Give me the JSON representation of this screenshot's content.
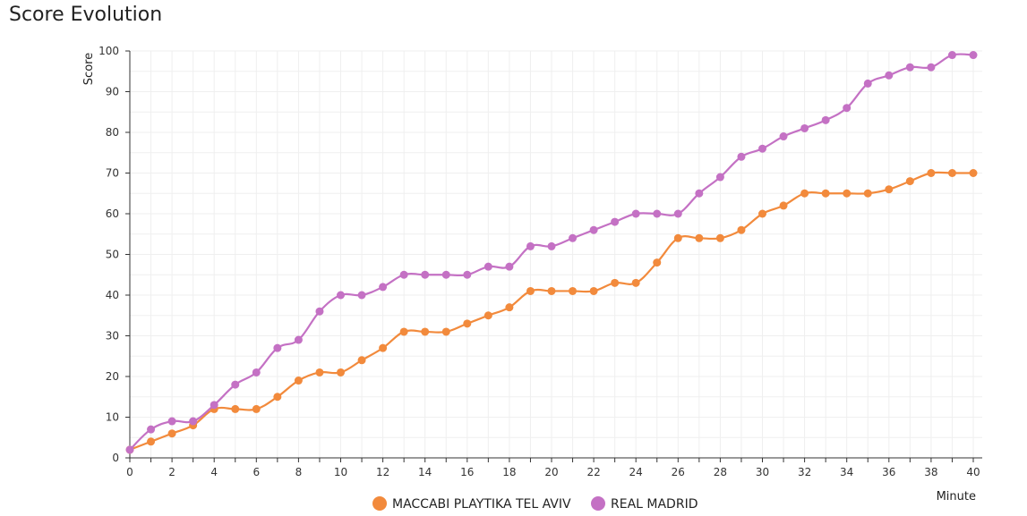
{
  "title": "Score Evolution",
  "chart_data": {
    "type": "line",
    "title": "Score Evolution",
    "xlabel": "Minute",
    "ylabel": "Score",
    "xlim": [
      0,
      40
    ],
    "ylim": [
      0,
      100
    ],
    "x_ticks": [
      0,
      2,
      4,
      6,
      8,
      10,
      12,
      14,
      16,
      18,
      20,
      22,
      24,
      26,
      28,
      30,
      32,
      34,
      36,
      38,
      40
    ],
    "y_ticks": [
      0,
      10,
      20,
      30,
      40,
      50,
      60,
      70,
      80,
      90,
      100
    ],
    "grid": true,
    "legend_position": "bottom",
    "x": [
      0,
      1,
      2,
      3,
      4,
      5,
      6,
      7,
      8,
      9,
      10,
      11,
      12,
      13,
      14,
      15,
      16,
      17,
      18,
      19,
      20,
      21,
      22,
      23,
      24,
      25,
      26,
      27,
      28,
      29,
      30,
      31,
      32,
      33,
      34,
      35,
      36,
      37,
      38,
      39,
      40
    ],
    "series": [
      {
        "name": "MACCABI PLAYTIKA TEL AVIV",
        "color": "#f28a3c",
        "values": [
          2,
          4,
          6,
          8,
          12,
          12,
          12,
          15,
          19,
          21,
          21,
          24,
          27,
          31,
          31,
          31,
          33,
          35,
          37,
          41,
          41,
          41,
          41,
          43,
          43,
          48,
          54,
          54,
          54,
          56,
          60,
          62,
          65,
          65,
          65,
          65,
          66,
          68,
          70,
          70,
          70
        ]
      },
      {
        "name": "REAL MADRID",
        "color": "#c471c4",
        "values": [
          2,
          7,
          9,
          9,
          13,
          18,
          21,
          27,
          29,
          36,
          40,
          40,
          42,
          45,
          45,
          45,
          45,
          47,
          47,
          52,
          52,
          54,
          56,
          58,
          60,
          60,
          60,
          65,
          69,
          74,
          76,
          79,
          81,
          83,
          86,
          92,
          94,
          96,
          96,
          99,
          99
        ]
      }
    ]
  }
}
